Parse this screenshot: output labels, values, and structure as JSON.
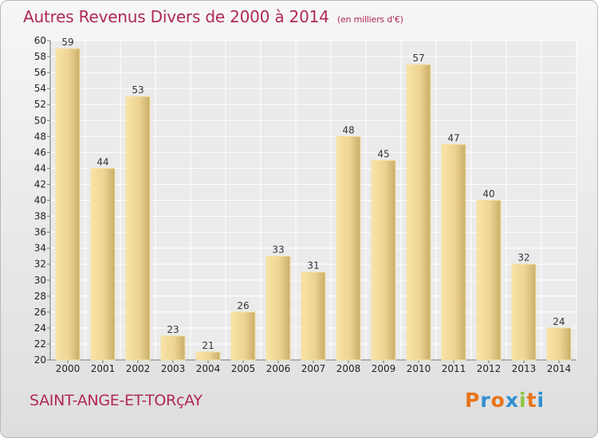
{
  "chart_data": {
    "type": "bar",
    "title": "Autres Revenus Divers de 2000 à 2014",
    "subtitle": "(en milliers d'€)",
    "categories": [
      "2000",
      "2001",
      "2002",
      "2003",
      "2004",
      "2005",
      "2006",
      "2007",
      "2008",
      "2009",
      "2010",
      "2011",
      "2012",
      "2013",
      "2014"
    ],
    "values": [
      59,
      44,
      53,
      23,
      21,
      26,
      33,
      31,
      48,
      45,
      57,
      47,
      40,
      32,
      24
    ],
    "ylim": [
      20,
      60
    ],
    "yticks": [
      20,
      22,
      24,
      26,
      28,
      30,
      32,
      34,
      36,
      38,
      40,
      42,
      44,
      46,
      48,
      50,
      52,
      54,
      56,
      58,
      60
    ],
    "grid": true,
    "bar_color": "#e8cc85"
  },
  "place_name": "SAINT-ANGE-ET-TORçAY",
  "logo": {
    "letters": [
      "P",
      "r",
      "o",
      "x",
      "i",
      "t",
      "i"
    ],
    "colors": [
      "#e8741a",
      "#2f8fcf",
      "#e8741a",
      "#2f8fcf",
      "#8cc63f",
      "#e8741a",
      "#2f8fcf"
    ]
  },
  "colors": {
    "title": "#b0285a"
  }
}
